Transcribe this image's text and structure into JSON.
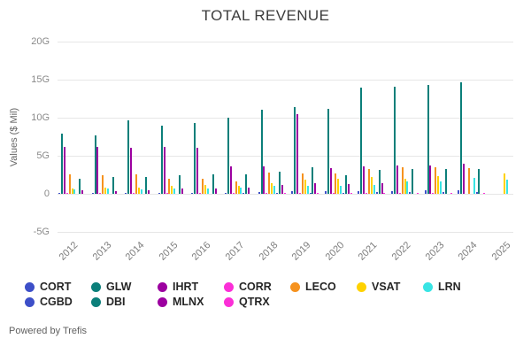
{
  "footer": "Powered by Trefis",
  "chart_data": {
    "type": "bar",
    "title": "TOTAL REVENUE",
    "ylabel": "Values ($ Mil)",
    "xlabel": "",
    "ylim": [
      -5,
      20
    ],
    "y_ticks": [
      {
        "value": 20,
        "label": "20G"
      },
      {
        "value": 15,
        "label": "15G"
      },
      {
        "value": 10,
        "label": "10G"
      },
      {
        "value": 5,
        "label": "5G"
      },
      {
        "value": 0,
        "label": "0"
      },
      {
        "value": -5,
        "label": "-5G"
      }
    ],
    "grid": true,
    "legend_position": "bottom",
    "unit_note": "bar values in G (ticks shown with G suffix)",
    "categories": [
      "2012",
      "2013",
      "2014",
      "2015",
      "2016",
      "2017",
      "2018",
      "2019",
      "2020",
      "2021",
      "2022",
      "2023",
      "2024",
      "2025"
    ],
    "series": [
      {
        "name": "CORT",
        "color": "#3d4fc8",
        "values": [
          0.08,
          0.09,
          0.1,
          0.11,
          0.12,
          0.16,
          0.25,
          0.3,
          0.33,
          0.37,
          0.4,
          0.45,
          0.45,
          0
        ]
      },
      {
        "name": "GLW",
        "color": "#0b7f7a",
        "values": [
          7.9,
          7.7,
          9.6,
          9.0,
          9.3,
          10.0,
          11.1,
          11.4,
          11.2,
          14.0,
          14.1,
          14.3,
          14.6,
          0
        ]
      },
      {
        "name": "IHRT",
        "color": "#9c00a0",
        "values": [
          6.2,
          6.2,
          6.1,
          6.2,
          6.1,
          3.6,
          3.6,
          10.5,
          3.35,
          3.55,
          3.7,
          3.75,
          3.9,
          0
        ]
      },
      {
        "name": "CORR",
        "color": "#fb2fd7",
        "values": [
          0.05,
          0.05,
          0.05,
          0.05,
          0.05,
          0.05,
          0.05,
          0.05,
          0.05,
          0.05,
          0.05,
          0.05,
          0,
          0
        ]
      },
      {
        "name": "LECO",
        "color": "#f6921e",
        "values": [
          2.5,
          2.4,
          2.6,
          2.0,
          1.95,
          1.6,
          2.8,
          2.7,
          2.7,
          3.2,
          3.45,
          3.5,
          3.4,
          0
        ]
      },
      {
        "name": "VSAT",
        "color": "#ffd200",
        "values": [
          0.65,
          0.85,
          0.8,
          1.05,
          1.2,
          1.05,
          1.45,
          1.85,
          2.0,
          2.2,
          2.0,
          2.35,
          0,
          2.65
        ]
      },
      {
        "name": "LRN",
        "color": "#38e4e4",
        "values": [
          0.55,
          0.7,
          0.6,
          0.75,
          0.65,
          0.85,
          1.05,
          1.05,
          1.0,
          1.2,
          1.65,
          1.6,
          2.05,
          1.9
        ]
      },
      {
        "name": "CGBD",
        "color": "#3d4fc8",
        "values": [
          0,
          0,
          0,
          0,
          0,
          0.12,
          0.15,
          0.15,
          0.16,
          0.18,
          0.2,
          0.2,
          0.2,
          0
        ]
      },
      {
        "name": "DBI",
        "color": "#0b7f7a",
        "values": [
          2.0,
          2.2,
          2.2,
          2.4,
          2.6,
          2.6,
          2.85,
          3.45,
          2.4,
          3.1,
          3.3,
          3.2,
          3.3,
          0
        ]
      },
      {
        "name": "MLNX",
        "color": "#9c00a0",
        "values": [
          0.45,
          0.4,
          0.45,
          0.65,
          0.7,
          0.85,
          1.2,
          1.35,
          1.3,
          1.4,
          0,
          0,
          0,
          0
        ]
      },
      {
        "name": "QTRX",
        "color": "#fb2fd7",
        "values": [
          0,
          0,
          0,
          0,
          0,
          0,
          0.05,
          0.06,
          0.09,
          0.11,
          0.11,
          0.12,
          0.15,
          0
        ]
      }
    ],
    "legend_columns": [
      [
        "CORT",
        "CGBD"
      ],
      [
        "GLW",
        "DBI"
      ],
      [
        "IHRT",
        "MLNX"
      ],
      [
        "CORR",
        "QTRX"
      ],
      [
        "LECO"
      ],
      [
        "VSAT"
      ],
      [
        "LRN"
      ]
    ]
  }
}
